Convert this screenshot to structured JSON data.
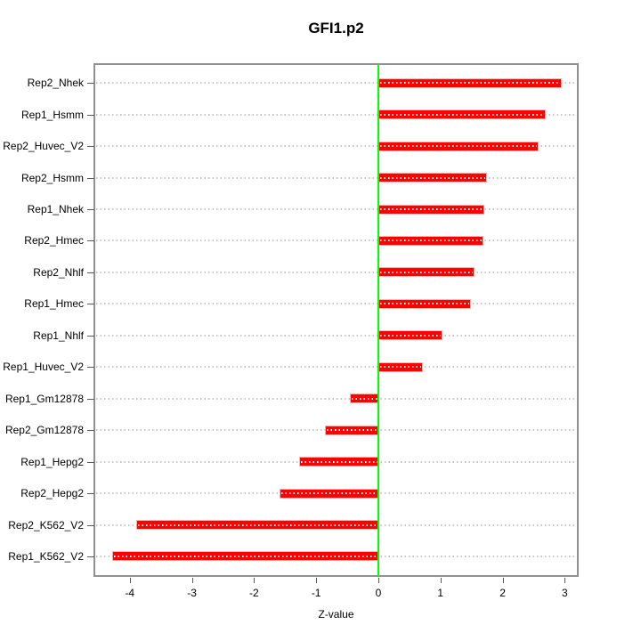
{
  "title": "GFI1.p2",
  "axes": {
    "xlabel": "Z-value"
  },
  "chart_data": {
    "type": "bar",
    "orientation": "horizontal",
    "title": "GFI1.p2",
    "xlabel": "Z-value",
    "ylabel": "",
    "categories": [
      "Rep2_Nhek",
      "Rep1_Hsmm",
      "Rep2_Huvec_V2",
      "Rep2_Hsmm",
      "Rep1_Nhek",
      "Rep2_Hmec",
      "Rep2_Nhlf",
      "Rep1_Hmec",
      "Rep1_Nhlf",
      "Rep1_Huvec_V2",
      "Rep1_Gm12878",
      "Rep2_Gm12878",
      "Rep1_Hepg2",
      "Rep2_Hepg2",
      "Rep2_K562_V2",
      "Rep1_K562_V2"
    ],
    "values": [
      2.92,
      2.66,
      2.55,
      1.72,
      1.67,
      1.66,
      1.52,
      1.46,
      1.01,
      0.69,
      -0.45,
      -0.85,
      -1.26,
      -1.58,
      -3.88,
      -4.27
    ],
    "xlim": [
      -4.57,
      3.21
    ],
    "xticks": [
      -4,
      -3,
      -2,
      -1,
      0,
      1,
      2,
      3
    ],
    "grid": "horizontal-dotted",
    "legend": "none",
    "bar_color": "#ff0000",
    "zero_line_color": "#00ff00",
    "grid_color": "#c6c6c6",
    "frame_color": "#919191"
  }
}
